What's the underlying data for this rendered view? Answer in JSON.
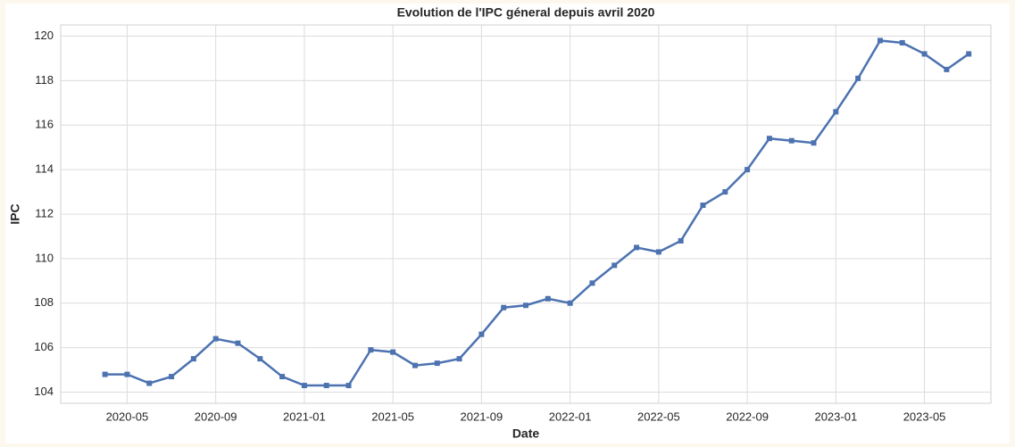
{
  "chart_data": {
    "type": "line",
    "title": "Evolution de l'IPC géneral depuis avril 2020",
    "xlabel": "Date",
    "ylabel": "IPC",
    "x": [
      "2020-04",
      "2020-05",
      "2020-06",
      "2020-07",
      "2020-08",
      "2020-09",
      "2020-10",
      "2020-11",
      "2020-12",
      "2021-01",
      "2021-02",
      "2021-03",
      "2021-04",
      "2021-05",
      "2021-06",
      "2021-07",
      "2021-08",
      "2021-09",
      "2021-10",
      "2021-11",
      "2021-12",
      "2022-01",
      "2022-02",
      "2022-03",
      "2022-04",
      "2022-05",
      "2022-06",
      "2022-07",
      "2022-08",
      "2022-09",
      "2022-10",
      "2022-11",
      "2022-12",
      "2023-01",
      "2023-02",
      "2023-03",
      "2023-04",
      "2023-05",
      "2023-06",
      "2023-07"
    ],
    "series": [
      {
        "name": "IPC",
        "color": "#4c72b0",
        "values": [
          104.8,
          104.8,
          104.4,
          104.7,
          105.5,
          106.4,
          106.2,
          105.5,
          104.7,
          104.3,
          104.3,
          104.3,
          105.9,
          105.8,
          105.2,
          105.3,
          105.5,
          106.6,
          107.8,
          107.9,
          108.2,
          108.0,
          108.9,
          109.7,
          110.5,
          110.3,
          110.8,
          112.4,
          113.0,
          114.0,
          115.4,
          115.3,
          115.2,
          116.6,
          118.1,
          119.8,
          119.7,
          119.2,
          118.5,
          119.2
        ]
      }
    ],
    "xlim": [
      "2020-02",
      "2023-08"
    ],
    "xticks": [
      "2020-05",
      "2020-09",
      "2021-01",
      "2021-05",
      "2021-09",
      "2022-01",
      "2022-05",
      "2022-09",
      "2023-01",
      "2023-05"
    ],
    "ylim": [
      103.5,
      120.5
    ],
    "yticks": [
      104,
      106,
      108,
      110,
      112,
      114,
      116,
      118,
      120
    ],
    "grid": true
  }
}
